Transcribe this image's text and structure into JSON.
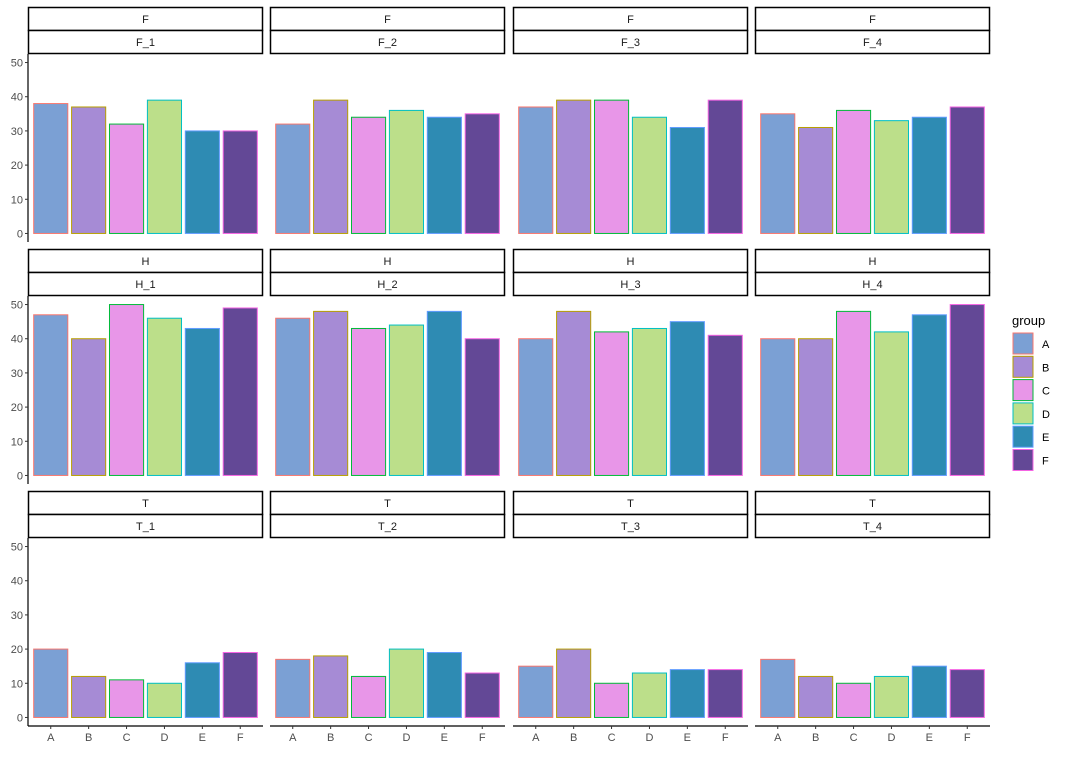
{
  "chart_data": {
    "type": "bar",
    "facet_rows": [
      "F",
      "H",
      "T"
    ],
    "categories": [
      "A",
      "B",
      "C",
      "D",
      "E",
      "F"
    ],
    "ylim": [
      0,
      50
    ],
    "yticks": [
      0,
      10,
      20,
      30,
      40,
      50
    ],
    "grid": false,
    "legend": {
      "title": "group",
      "placement": "right",
      "entries": [
        "A",
        "B",
        "C",
        "D",
        "E",
        "F"
      ]
    },
    "fill_colors": [
      "#7BA0D4",
      "#A68BD5",
      "#E896E8",
      "#BCDF8A",
      "#2E8BB3",
      "#634896"
    ],
    "outline_colors": [
      "#F8766D",
      "#B79F00",
      "#00BA38",
      "#00BFC4",
      "#619CFF",
      "#F564E3"
    ],
    "panels": [
      {
        "row": "F",
        "label": "F_1",
        "values": [
          38,
          37,
          32,
          39,
          30,
          30
        ]
      },
      {
        "row": "F",
        "label": "F_2",
        "values": [
          32,
          39,
          34,
          36,
          34,
          35
        ]
      },
      {
        "row": "F",
        "label": "F_3",
        "values": [
          37,
          39,
          39,
          34,
          31,
          39
        ]
      },
      {
        "row": "F",
        "label": "F_4",
        "values": [
          35,
          31,
          36,
          33,
          34,
          37
        ]
      },
      {
        "row": "H",
        "label": "H_1",
        "values": [
          47,
          40,
          50,
          46,
          43,
          49
        ]
      },
      {
        "row": "H",
        "label": "H_2",
        "values": [
          46,
          48,
          43,
          44,
          48,
          40
        ]
      },
      {
        "row": "H",
        "label": "H_3",
        "values": [
          40,
          48,
          42,
          43,
          45,
          41
        ]
      },
      {
        "row": "H",
        "label": "H_4",
        "values": [
          40,
          40,
          48,
          42,
          47,
          50
        ]
      },
      {
        "row": "T",
        "label": "T_1",
        "values": [
          20,
          12,
          11,
          10,
          16,
          19
        ]
      },
      {
        "row": "T",
        "label": "T_2",
        "values": [
          17,
          18,
          12,
          20,
          19,
          13
        ]
      },
      {
        "row": "T",
        "label": "T_3",
        "values": [
          15,
          20,
          10,
          13,
          14,
          14
        ]
      },
      {
        "row": "T",
        "label": "T_4",
        "values": [
          17,
          12,
          10,
          12,
          15,
          14
        ]
      }
    ]
  }
}
